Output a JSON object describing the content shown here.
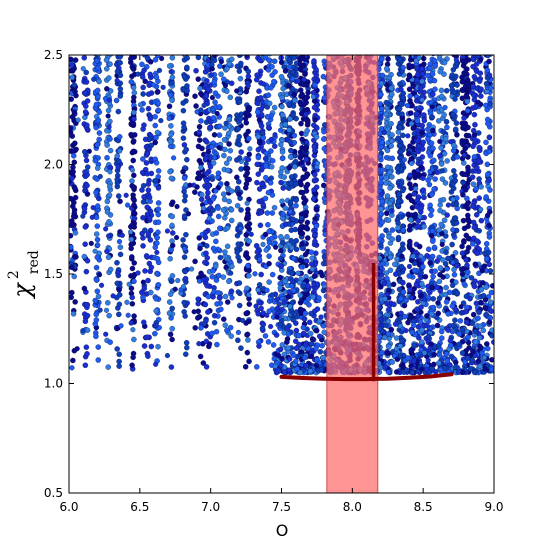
{
  "chart_data": {
    "type": "scatter",
    "title": "",
    "xlabel": "O",
    "ylabel": {
      "base": "χ",
      "sup": "2",
      "sub": "red"
    },
    "xlim": [
      6.0,
      9.0
    ],
    "ylim": [
      0.5,
      2.5
    ],
    "xticks": [
      "6.0",
      "6.5",
      "7.0",
      "7.5",
      "8.0",
      "8.5",
      "9.0"
    ],
    "yticks": [
      "0.5",
      "1.0",
      "1.5",
      "2.0",
      "2.5"
    ],
    "grid": false,
    "legend": "none",
    "shaded_band": {
      "x_range": [
        7.82,
        8.18
      ],
      "color": "#ff6b6b"
    },
    "point_colors": [
      "#0a0a8a",
      "#1a2fd0",
      "#1e5bf0",
      "#2f7de0",
      "#0d3fb8"
    ],
    "point_columns_x": [
      6.03,
      6.12,
      6.2,
      6.28,
      6.35,
      6.45,
      6.55,
      6.62,
      6.72,
      6.82,
      6.92,
      6.98,
      7.04,
      7.12,
      7.2,
      7.26,
      7.35,
      7.42,
      7.52,
      7.58,
      7.66,
      7.74,
      7.82,
      7.9,
      7.97,
      8.04,
      8.12,
      8.2,
      8.26,
      8.34,
      8.42,
      8.48,
      8.56,
      8.64,
      8.72,
      8.8,
      8.88,
      8.96
    ],
    "point_floor_y": 1.05,
    "minimum_curve": {
      "color": "#8b0000",
      "x": [
        7.5,
        7.65,
        7.8,
        7.95,
        8.1,
        8.25,
        8.4,
        8.55,
        8.7
      ],
      "y": [
        1.03,
        1.025,
        1.022,
        1.02,
        1.02,
        1.022,
        1.026,
        1.032,
        1.042
      ]
    },
    "minimum_spike": {
      "x": 8.15,
      "y_top": 1.55,
      "y_bottom": 1.01
    }
  }
}
